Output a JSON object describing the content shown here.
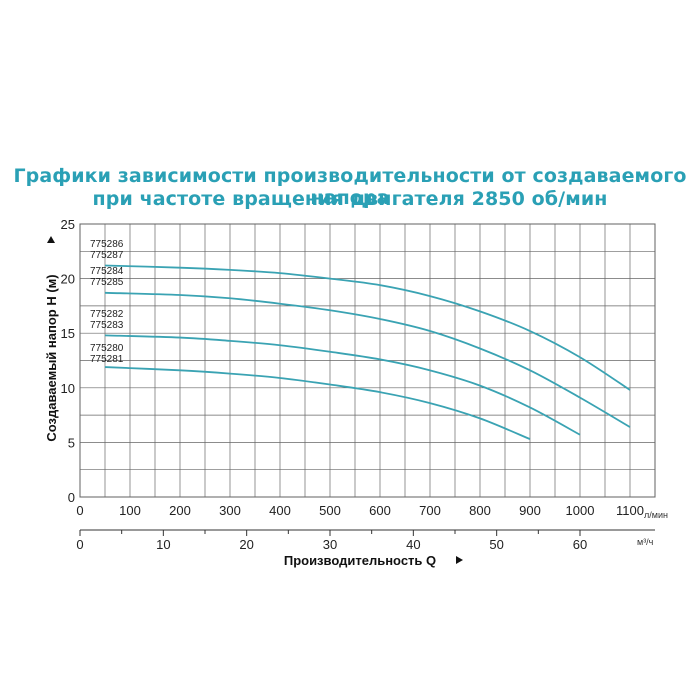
{
  "title_line1": "Графики зависимости производительности от создаваемого напора",
  "title_line2": "при частоте вращения двигателя 2850 об/мин",
  "chart_data": {
    "type": "line",
    "title": "Графики зависимости производительности от создаваемого напора при частоте вращения двигателя 2850 об/мин",
    "xlabel": "Производительность Q",
    "ylabel": "Создаваемый напор H (м)",
    "x_unit_primary": "л/мин",
    "x_unit_secondary": "м³/ч",
    "xlim": [
      0,
      1100
    ],
    "ylim": [
      0,
      25
    ],
    "x_ticks": [
      "0",
      "100",
      "200",
      "300",
      "400",
      "500",
      "600",
      "700",
      "800",
      "900",
      "1000",
      "1100"
    ],
    "x2_ticks": [
      "0",
      "10",
      "20",
      "30",
      "40",
      "50",
      "60"
    ],
    "y_ticks": [
      "0",
      "5",
      "10",
      "15",
      "20",
      "25"
    ],
    "grid": true,
    "line_color": "#3aa3b3",
    "series_labels": [
      "775286",
      "775287",
      "775284",
      "775285",
      "775282",
      "775283",
      "775280",
      "775281"
    ],
    "series": [
      {
        "name": "775286 / 775287",
        "x": [
          50,
          200,
          300,
          400,
          500,
          600,
          700,
          800,
          900,
          1000,
          1100
        ],
        "y": [
          21.2,
          21.0,
          20.8,
          20.5,
          20.0,
          19.4,
          18.4,
          17.0,
          15.2,
          12.8,
          9.8
        ]
      },
      {
        "name": "775284 / 775285",
        "x": [
          50,
          200,
          300,
          400,
          500,
          600,
          700,
          800,
          900,
          1000,
          1100
        ],
        "y": [
          18.7,
          18.5,
          18.2,
          17.7,
          17.1,
          16.3,
          15.2,
          13.6,
          11.6,
          9.1,
          6.4
        ]
      },
      {
        "name": "775282 / 775283",
        "x": [
          50,
          200,
          300,
          400,
          500,
          600,
          700,
          800,
          900,
          1000
        ],
        "y": [
          14.8,
          14.6,
          14.3,
          13.9,
          13.3,
          12.6,
          11.6,
          10.2,
          8.2,
          5.7
        ]
      },
      {
        "name": "775280 / 775281",
        "x": [
          50,
          200,
          300,
          400,
          500,
          600,
          700,
          800,
          900
        ],
        "y": [
          11.9,
          11.6,
          11.3,
          10.9,
          10.3,
          9.6,
          8.6,
          7.2,
          5.3
        ]
      }
    ]
  }
}
